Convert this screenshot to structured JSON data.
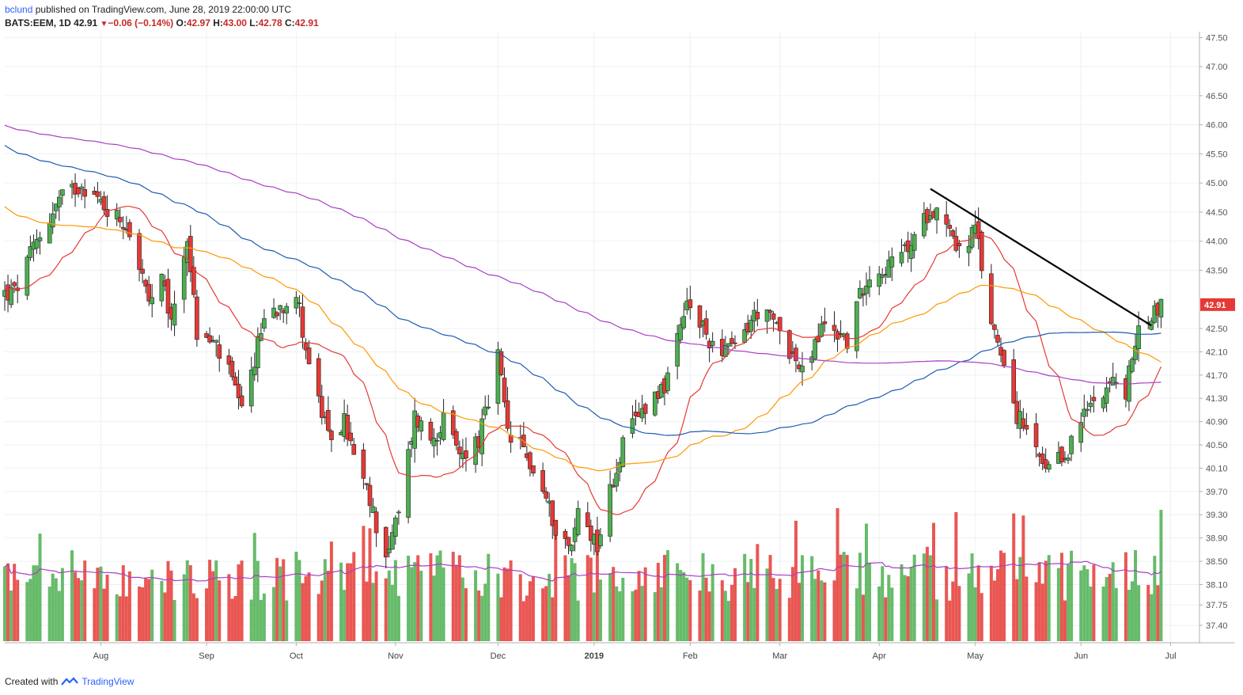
{
  "header": {
    "user": "bclund",
    "published": "published on TradingView.com, June 28, 2019 22:00:00 UTC",
    "symbol": "BATS:EEM, 1D",
    "last": "42.91",
    "change": "−0.06 (−0.14%)",
    "o_label": "O:",
    "o_val": "42.97",
    "h_label": "H:",
    "h_val": "43.00",
    "l_label": "L:",
    "l_val": "42.78",
    "c_label": "C:",
    "c_val": "42.91"
  },
  "footer": {
    "created_with": "Created with",
    "brand": "TradingView"
  },
  "colors": {
    "up": "#4caf50",
    "down": "#e53935",
    "ma20": "#e53935",
    "ma50": "#ff9800",
    "ma100": "#1e5bb3",
    "ma200": "#a93ec4",
    "trendline": "#000000",
    "vol_ma": "#a93ec4"
  },
  "chart_data": {
    "type": "candlestick",
    "symbol": "BATS:EEM",
    "interval": "1D",
    "ylim": [
      37.1,
      47.6
    ],
    "y_ticks": [
      "47.50",
      "47.00",
      "46.50",
      "46.00",
      "45.50",
      "45.00",
      "44.50",
      "44.00",
      "43.50",
      "42.50",
      "42.10",
      "41.70",
      "41.30",
      "40.90",
      "40.50",
      "40.10",
      "39.70",
      "39.30",
      "38.90",
      "38.50",
      "38.10",
      "37.75",
      "37.40"
    ],
    "last_price_label": "42.91",
    "x_ticks": [
      {
        "label": "Aug",
        "date": "2018-08-01"
      },
      {
        "label": "Sep",
        "date": "2018-09-03"
      },
      {
        "label": "Oct",
        "date": "2018-10-01"
      },
      {
        "label": "Nov",
        "date": "2018-11-01"
      },
      {
        "label": "Dec",
        "date": "2018-12-03"
      },
      {
        "label": "2019",
        "date": "2019-01-02"
      },
      {
        "label": "Feb",
        "date": "2019-02-01"
      },
      {
        "label": "Mar",
        "date": "2019-03-01"
      },
      {
        "label": "Apr",
        "date": "2019-04-01"
      },
      {
        "label": "May",
        "date": "2019-05-01"
      },
      {
        "label": "Jun",
        "date": "2019-06-03"
      },
      {
        "label": "Jul",
        "date": "2019-07-01"
      }
    ],
    "close_keypoints": [
      [
        "2018-07-05",
        43.1
      ],
      [
        "2018-07-12",
        44.0
      ],
      [
        "2018-07-19",
        44.7
      ],
      [
        "2018-07-26",
        45.0
      ],
      [
        "2018-08-02",
        44.6
      ],
      [
        "2018-08-09",
        44.3
      ],
      [
        "2018-08-13",
        43.6
      ],
      [
        "2018-08-16",
        42.9
      ],
      [
        "2018-08-20",
        43.3
      ],
      [
        "2018-08-23",
        42.6
      ],
      [
        "2018-08-28",
        44.1
      ],
      [
        "2018-08-31",
        42.4
      ],
      [
        "2018-09-06",
        42.2
      ],
      [
        "2018-09-11",
        41.6
      ],
      [
        "2018-09-14",
        41.0
      ],
      [
        "2018-09-21",
        42.7
      ],
      [
        "2018-09-26",
        42.9
      ],
      [
        "2018-10-01",
        43.1
      ],
      [
        "2018-10-05",
        41.9
      ],
      [
        "2018-10-11",
        40.6
      ],
      [
        "2018-10-16",
        40.9
      ],
      [
        "2018-10-19",
        40.3
      ],
      [
        "2018-10-24",
        39.5
      ],
      [
        "2018-10-29",
        38.6
      ],
      [
        "2018-11-02",
        39.3
      ],
      [
        "2018-11-07",
        41.0
      ],
      [
        "2018-11-12",
        40.6
      ],
      [
        "2018-11-16",
        40.9
      ],
      [
        "2018-11-21",
        40.3
      ],
      [
        "2018-11-27",
        40.6
      ],
      [
        "2018-11-30",
        41.2
      ],
      [
        "2018-12-03",
        42.0
      ],
      [
        "2018-12-06",
        40.7
      ],
      [
        "2018-12-11",
        40.4
      ],
      [
        "2018-12-17",
        39.7
      ],
      [
        "2018-12-21",
        39.1
      ],
      [
        "2018-12-26",
        38.7
      ],
      [
        "2018-12-28",
        39.4
      ],
      [
        "2019-01-03",
        38.8
      ],
      [
        "2019-01-07",
        39.7
      ],
      [
        "2019-01-11",
        40.5
      ],
      [
        "2019-01-18",
        41.2
      ],
      [
        "2019-01-25",
        41.6
      ],
      [
        "2019-01-31",
        42.9
      ],
      [
        "2019-02-07",
        42.3
      ],
      [
        "2019-02-14",
        42.1
      ],
      [
        "2019-02-22",
        42.8
      ],
      [
        "2019-03-01",
        42.5
      ],
      [
        "2019-03-08",
        41.7
      ],
      [
        "2019-03-15",
        42.6
      ],
      [
        "2019-03-22",
        42.3
      ],
      [
        "2019-03-28",
        43.4
      ],
      [
        "2019-04-05",
        43.6
      ],
      [
        "2019-04-12",
        44.0
      ],
      [
        "2019-04-17",
        44.6
      ],
      [
        "2019-04-22",
        44.4
      ],
      [
        "2019-04-26",
        43.8
      ],
      [
        "2019-05-01",
        44.2
      ],
      [
        "2019-05-06",
        42.6
      ],
      [
        "2019-05-10",
        42.0
      ],
      [
        "2019-05-14",
        41.0
      ],
      [
        "2019-05-17",
        40.7
      ],
      [
        "2019-05-23",
        40.0
      ],
      [
        "2019-05-29",
        40.3
      ],
      [
        "2019-06-03",
        40.9
      ],
      [
        "2019-06-07",
        41.3
      ],
      [
        "2019-06-12",
        41.6
      ],
      [
        "2019-06-17",
        41.4
      ],
      [
        "2019-06-20",
        42.3
      ],
      [
        "2019-06-24",
        42.7
      ],
      [
        "2019-06-28",
        42.91
      ]
    ],
    "volume_profile": "daily volume bars; green on up days, red on down days, with volume moving average",
    "moving_averages": [
      {
        "name": "MA20",
        "color": "#e53935"
      },
      {
        "name": "MA50",
        "color": "#ff9800"
      },
      {
        "name": "MA100",
        "color": "#1e5bb3"
      },
      {
        "name": "MA200",
        "color": "#a93ec4"
      }
    ],
    "trendline": {
      "from": {
        "date": "2019-04-17",
        "price": 44.9
      },
      "to": {
        "date": "2019-06-25",
        "price": 42.55
      }
    }
  }
}
